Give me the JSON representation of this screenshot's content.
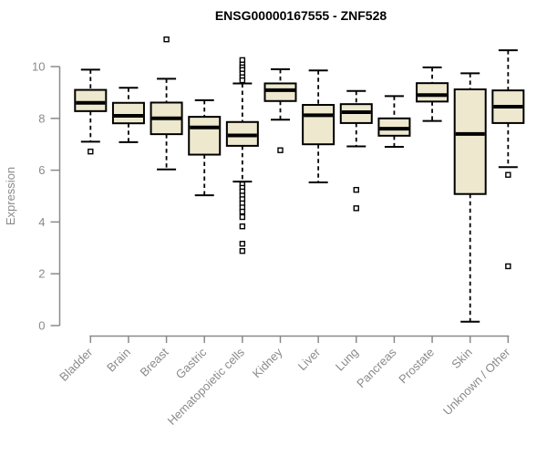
{
  "chart_data": {
    "type": "box",
    "title": "ENSG00000167555 - ZNF528",
    "ylabel": "Expression",
    "xlabel": "",
    "ylim": [
      0,
      10
    ],
    "yticks": [
      0,
      2,
      4,
      6,
      8,
      10
    ],
    "grid": false,
    "legend": false,
    "categories": [
      "Bladder",
      "Brain",
      "Breast",
      "Gastric",
      "Hematopoietic cells",
      "Kidney",
      "Liver",
      "Lung",
      "Pancreas",
      "Prostate",
      "Skin",
      "Unknown / Other"
    ],
    "series": [
      {
        "name": "Bladder",
        "whisker_low": 7.1,
        "q1": 8.28,
        "median": 8.6,
        "q3": 9.1,
        "whisker_high": 9.88,
        "outliers": [
          6.72
        ]
      },
      {
        "name": "Brain",
        "whisker_low": 7.08,
        "q1": 7.81,
        "median": 8.1,
        "q3": 8.6,
        "whisker_high": 9.18,
        "outliers": []
      },
      {
        "name": "Breast",
        "whisker_low": 6.03,
        "q1": 7.39,
        "median": 8.0,
        "q3": 8.61,
        "whisker_high": 9.53,
        "outliers": [
          11.05
        ]
      },
      {
        "name": "Gastric",
        "whisker_low": 5.03,
        "q1": 6.6,
        "median": 7.65,
        "q3": 8.06,
        "whisker_high": 8.7,
        "outliers": []
      },
      {
        "name": "Hematopoietic cells",
        "whisker_low": 5.56,
        "q1": 6.94,
        "median": 7.34,
        "q3": 7.86,
        "whisker_high": 9.35,
        "outliers": [
          10.25,
          10.08,
          9.97,
          9.87,
          9.73,
          9.59,
          9.47,
          5.45,
          5.32,
          5.18,
          5.02,
          4.88,
          4.72,
          4.56,
          4.4,
          4.19,
          3.83,
          3.16,
          2.88
        ]
      },
      {
        "name": "Kidney",
        "whisker_low": 7.95,
        "q1": 8.67,
        "median": 9.09,
        "q3": 9.35,
        "whisker_high": 9.9,
        "outliers": [
          6.77
        ]
      },
      {
        "name": "Liver",
        "whisker_low": 5.53,
        "q1": 7.0,
        "median": 8.12,
        "q3": 8.52,
        "whisker_high": 9.85,
        "outliers": []
      },
      {
        "name": "Lung",
        "whisker_low": 6.92,
        "q1": 7.82,
        "median": 8.24,
        "q3": 8.55,
        "whisker_high": 9.06,
        "outliers": [
          5.24,
          4.53
        ]
      },
      {
        "name": "Pancreas",
        "whisker_low": 6.9,
        "q1": 7.33,
        "median": 7.6,
        "q3": 8.0,
        "whisker_high": 8.86,
        "outliers": []
      },
      {
        "name": "Prostate",
        "whisker_low": 7.9,
        "q1": 8.65,
        "median": 8.9,
        "q3": 9.36,
        "whisker_high": 9.97,
        "outliers": []
      },
      {
        "name": "Skin",
        "whisker_low": 0.15,
        "q1": 5.08,
        "median": 7.4,
        "q3": 9.12,
        "whisker_high": 9.74,
        "outliers": []
      },
      {
        "name": "Unknown / Other",
        "whisker_low": 6.12,
        "q1": 7.82,
        "median": 8.45,
        "q3": 9.08,
        "whisker_high": 10.63,
        "outliers": [
          5.82,
          2.29
        ]
      }
    ],
    "colors": {
      "box_fill": "#ede8ce",
      "box_stroke": "#000000",
      "median": "#000000",
      "whisker": "#000000",
      "outlier": "#000000",
      "axis": "#8a8a8a",
      "tick_label": "#8a8a8a",
      "title": "#000000",
      "background": "#ffffff"
    }
  }
}
